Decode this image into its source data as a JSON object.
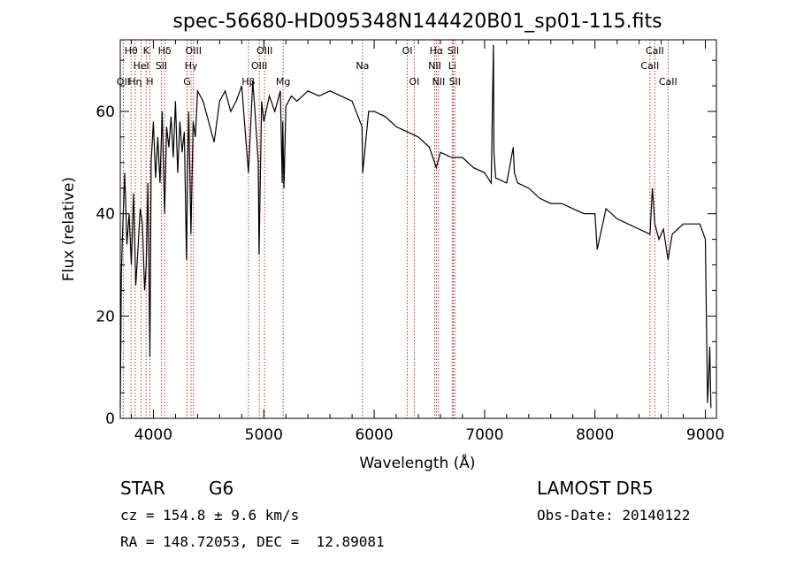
{
  "chart_data": {
    "type": "line",
    "title": "spec-56680-HD095348N144420B01_sp01-115.fits",
    "xlabel": "Wavelength (Å)",
    "ylabel": "Flux (relative)",
    "xlim": [
      3700,
      9100
    ],
    "ylim": [
      0,
      74
    ],
    "xticks": [
      4000,
      5000,
      6000,
      7000,
      8000,
      9000
    ],
    "yticks": [
      0,
      20,
      40,
      60
    ],
    "grid": false,
    "series": [
      {
        "x": [
          3700,
          3710,
          3720,
          3740,
          3760,
          3780,
          3800,
          3820,
          3840,
          3860,
          3880,
          3900,
          3920,
          3935,
          3950,
          3968,
          3980,
          4000,
          4020,
          4040,
          4060,
          4080,
          4101,
          4120,
          4140,
          4160,
          4180,
          4200,
          4220,
          4240,
          4260,
          4280,
          4300,
          4310,
          4320,
          4340,
          4360,
          4380,
          4400,
          4450,
          4500,
          4550,
          4600,
          4650,
          4700,
          4750,
          4800,
          4861,
          4900,
          4920,
          4950,
          4957,
          4980,
          5000,
          5050,
          5100,
          5150,
          5167,
          5172,
          5183,
          5200,
          5250,
          5300,
          5400,
          5500,
          5600,
          5700,
          5800,
          5890,
          5896,
          5950,
          6000,
          6100,
          6200,
          6300,
          6400,
          6500,
          6563,
          6600,
          6700,
          6800,
          6900,
          7000,
          7060,
          7080,
          7085,
          7100,
          7200,
          7260,
          7270,
          7300,
          7400,
          7500,
          7600,
          7700,
          7800,
          7900,
          8000,
          8020,
          8100,
          8200,
          8300,
          8400,
          8498,
          8520,
          8542,
          8580,
          8620,
          8662,
          8700,
          8750,
          8800,
          8850,
          8900,
          8950,
          9000,
          9020,
          9030,
          9040,
          9050
        ],
        "y": [
          2,
          28,
          36,
          48,
          34,
          40,
          30,
          44,
          26,
          33,
          41,
          38,
          25,
          30,
          46,
          12,
          50,
          58,
          47,
          55,
          46,
          60,
          40,
          57,
          53,
          59,
          51,
          62,
          48,
          58,
          52,
          56,
          31,
          50,
          60,
          36,
          58,
          55,
          64,
          62,
          58,
          54,
          62,
          64,
          60,
          62,
          65,
          48,
          66,
          60,
          50,
          32,
          62,
          58,
          63,
          60,
          64,
          46,
          58,
          45,
          61,
          63,
          62,
          64,
          63,
          64,
          63,
          62,
          57,
          48,
          60,
          60,
          59,
          57,
          56,
          55,
          53,
          49,
          52,
          51,
          51,
          49,
          48,
          46,
          73,
          52,
          47,
          46,
          53,
          48,
          46,
          45,
          43,
          42,
          42,
          41,
          40,
          40,
          33,
          41,
          39,
          38,
          37,
          36,
          45,
          38,
          35,
          37,
          31,
          36,
          37,
          38,
          38,
          38,
          38,
          35,
          3,
          8,
          14,
          2
        ]
      }
    ],
    "lines": [
      {
        "w": 3727,
        "name": "OII",
        "row": 2
      },
      {
        "w": 3798,
        "name": "Hθ",
        "row": 0
      },
      {
        "w": 3835,
        "name": "Hη",
        "row": 2
      },
      {
        "w": 3889,
        "name": "HeI",
        "row": 1
      },
      {
        "w": 3934,
        "name": "K",
        "row": 0
      },
      {
        "w": 3968,
        "name": "H",
        "row": 2
      },
      {
        "w": 4072,
        "name": "SII",
        "row": 1
      },
      {
        "w": 4102,
        "name": "Hδ",
        "row": 0
      },
      {
        "w": 4305,
        "name": "G",
        "row": 2
      },
      {
        "w": 4341,
        "name": "Hγ",
        "row": 1
      },
      {
        "w": 4363,
        "name": "OIII",
        "row": 0
      },
      {
        "w": 4861,
        "name": "Hβ",
        "row": 2
      },
      {
        "w": 4959,
        "name": "OIII",
        "row": 1
      },
      {
        "w": 5007,
        "name": "OIII",
        "row": 0
      },
      {
        "w": 5175,
        "name": "Mg",
        "row": 2
      },
      {
        "w": 5894,
        "name": "Na",
        "row": 1
      },
      {
        "w": 6300,
        "name": "OI",
        "row": 0
      },
      {
        "w": 6363,
        "name": "OI",
        "row": 2
      },
      {
        "w": 6548,
        "name": "NII",
        "row": 1
      },
      {
        "w": 6563,
        "name": "Hα",
        "row": 0
      },
      {
        "w": 6583,
        "name": "NII",
        "row": 2
      },
      {
        "w": 6707,
        "name": "Li",
        "row": 1
      },
      {
        "w": 6716,
        "name": "SII",
        "row": 0
      },
      {
        "w": 6731,
        "name": "SII",
        "row": 2
      },
      {
        "w": 8498,
        "name": "CaII",
        "row": 1
      },
      {
        "w": 8542,
        "name": "CaII",
        "row": 0
      },
      {
        "w": 8662,
        "name": "CaII",
        "row": 2
      }
    ]
  },
  "info": {
    "class": "STAR",
    "subclass": "G6",
    "cz": "cz = 154.8 ± 9.6 km/s",
    "radec": "RA = 148.72053, DEC =  12.89081",
    "survey": "LAMOST DR5",
    "obsdate": "Obs-Date: 20140122"
  },
  "colors": {
    "line_marker": "#b22222",
    "spectrum": "#000000"
  }
}
